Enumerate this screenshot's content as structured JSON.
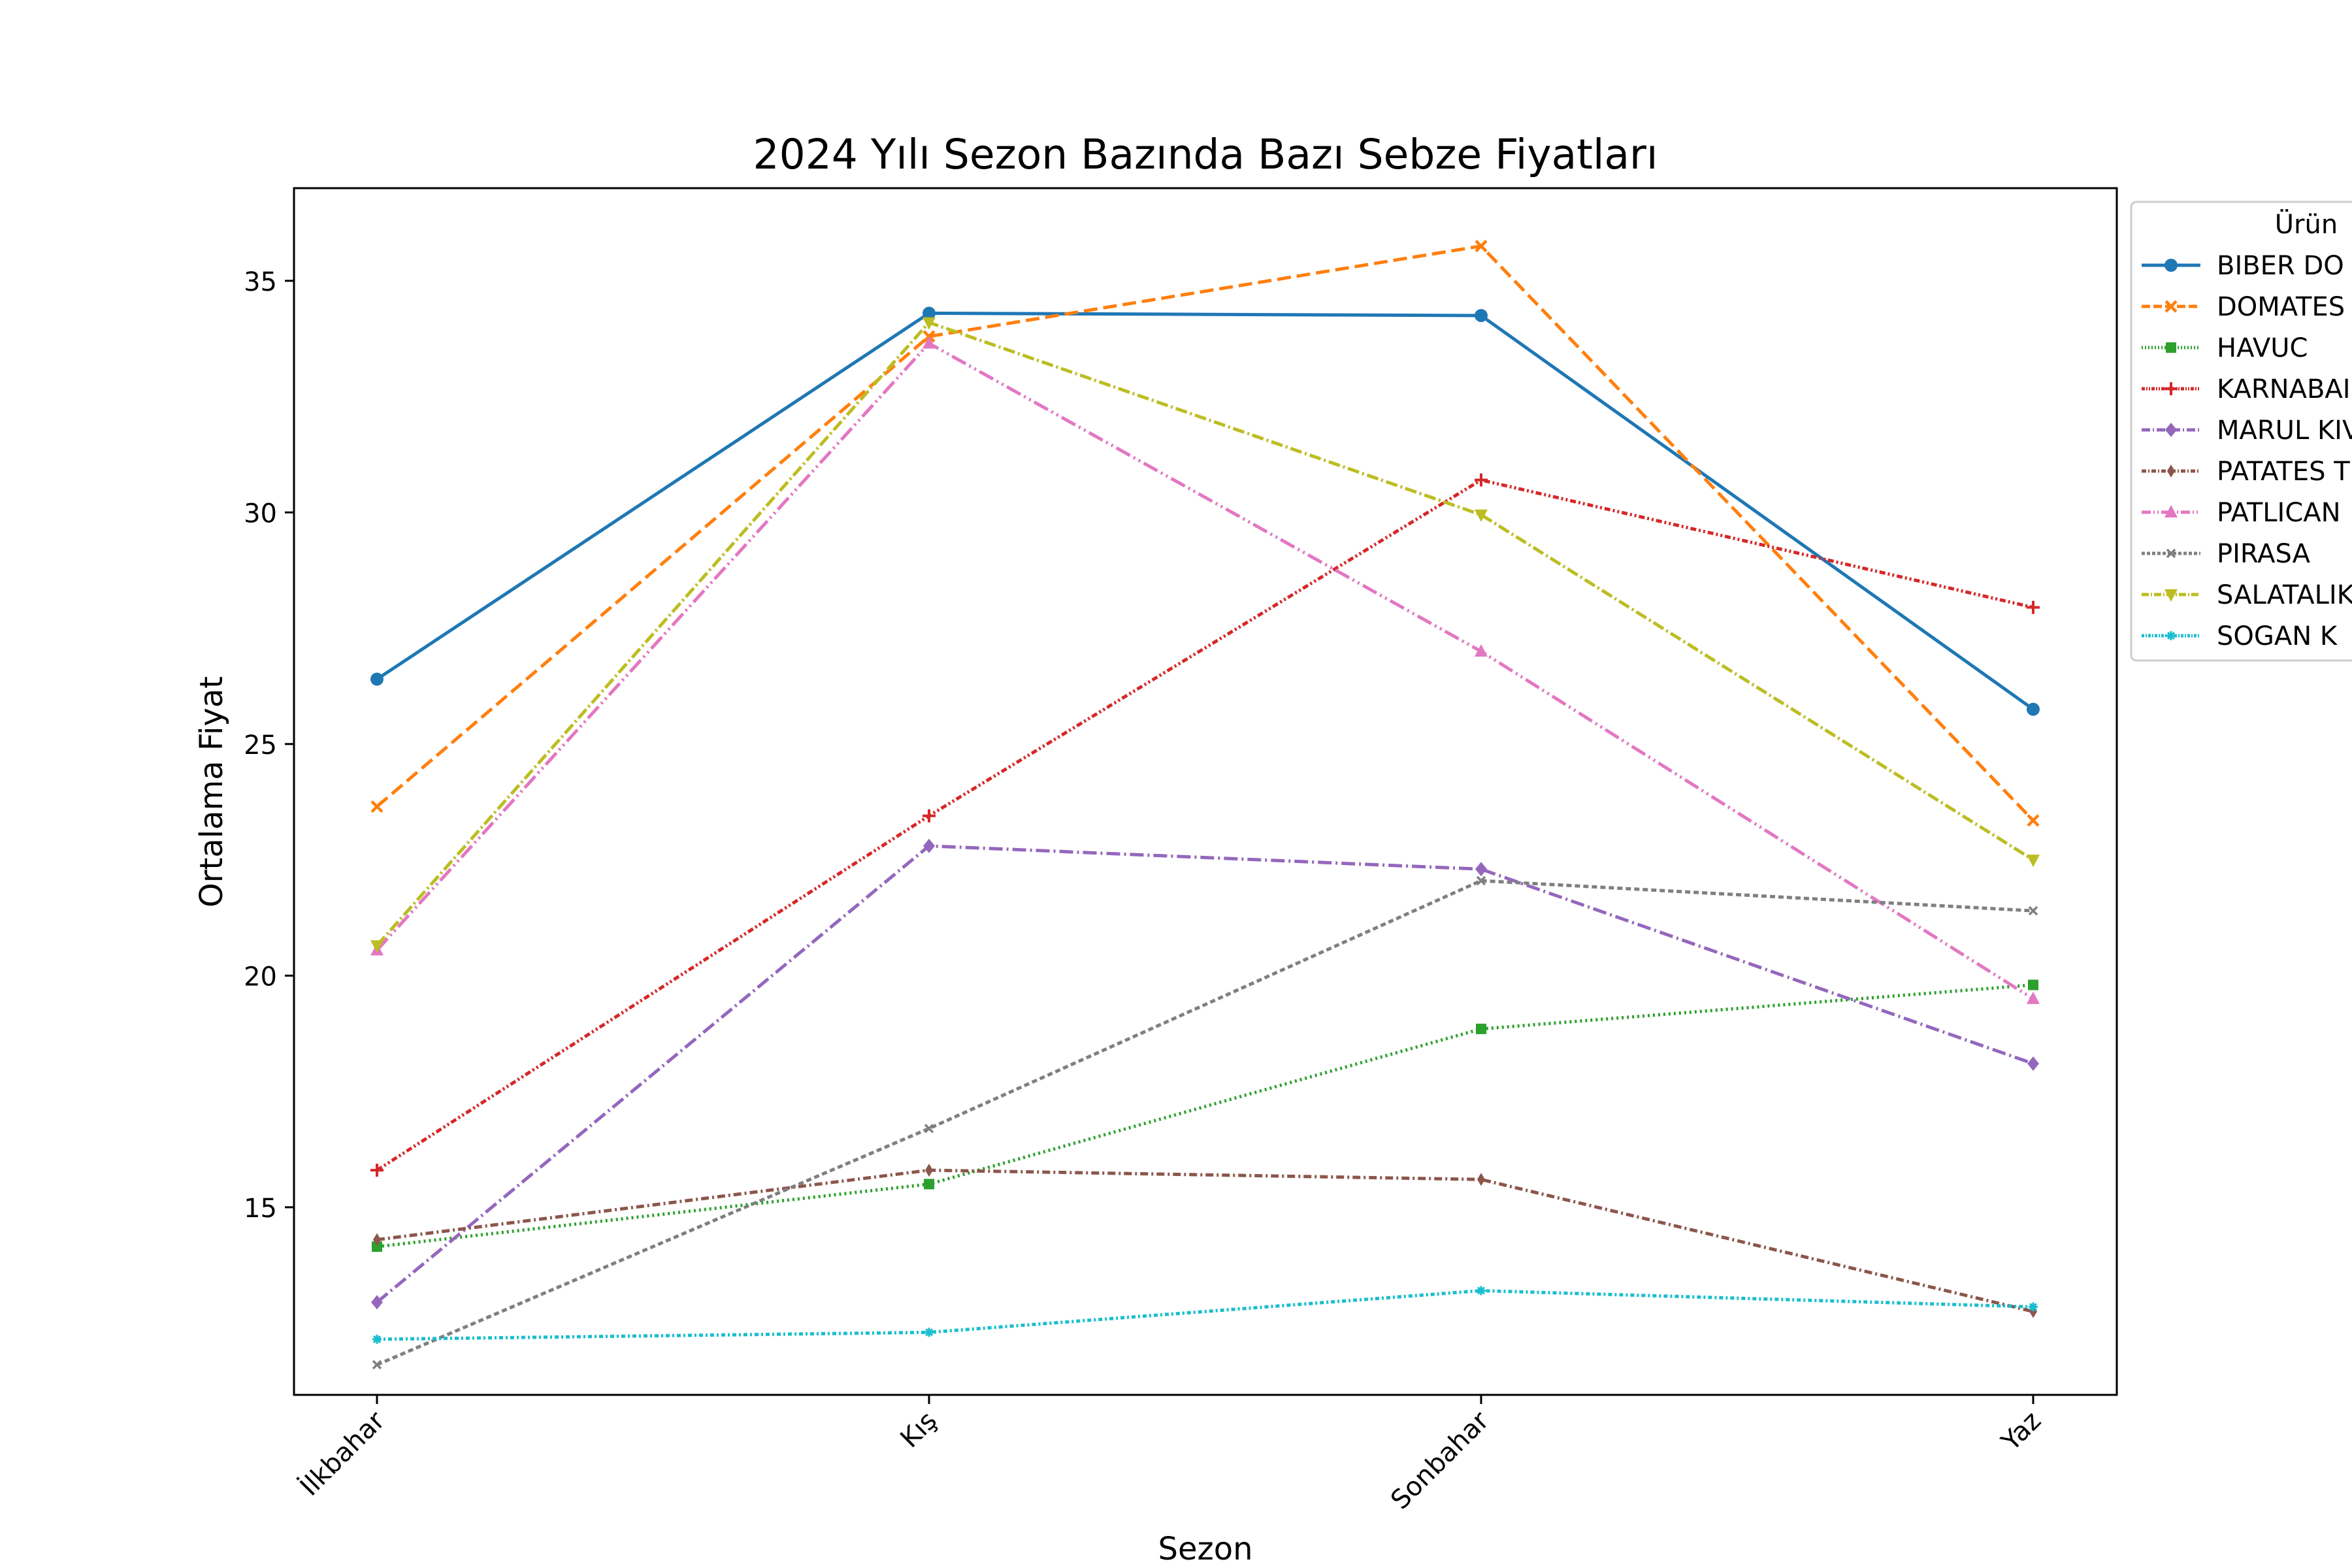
{
  "chart_data": {
    "type": "line",
    "title": "2024 Yılı Sezon Bazında Bazı Sebze Fiyatları",
    "xlabel": "Sezon",
    "ylabel": "Ortalama Fiyat",
    "categories": [
      "İlkbahar",
      "Kış",
      "Sonbahar",
      "Yaz"
    ],
    "ylim": [
      10.95,
      37.0
    ],
    "yticks": [
      15,
      20,
      25,
      30,
      35
    ],
    "grid": false,
    "legend_title": "Ürün",
    "legend_position": "outside-right (clipped)",
    "series": [
      {
        "name": "BIBER  DO",
        "color": "#1f77b4",
        "marker": "circle",
        "dash": "",
        "values": [
          26.4,
          34.3,
          34.25,
          25.75
        ]
      },
      {
        "name": "DOMATES",
        "color": "#ff7f0e",
        "marker": "x",
        "dash": "21 9",
        "values": [
          23.65,
          33.8,
          35.75,
          23.35
        ]
      },
      {
        "name": "HAVUC",
        "color": "#2ca02c",
        "marker": "square",
        "dash": "3 5",
        "values": [
          14.15,
          15.5,
          18.85,
          19.8
        ]
      },
      {
        "name": "KARNABAI",
        "color": "#d62728",
        "marker": "plus",
        "dash": "9 4 3 4 3 4",
        "values": [
          15.8,
          23.45,
          30.7,
          27.95
        ]
      },
      {
        "name": "MARUL KIV",
        "color": "#9467bd",
        "marker": "diamond",
        "dash": "21 6 3 6",
        "values": [
          12.95,
          22.8,
          22.3,
          18.1
        ]
      },
      {
        "name": "PATATES T",
        "color": "#8c564b",
        "marker": "thin-diamond",
        "dash": "12 5 3 5",
        "values": [
          14.3,
          15.8,
          15.6,
          12.75
        ]
      },
      {
        "name": "PATLICAN",
        "color": "#e377c2",
        "marker": "triangle-up",
        "dash": "24 6 3 6 3 6",
        "values": [
          20.55,
          33.65,
          27.0,
          19.5
        ]
      },
      {
        "name": "PIRASA",
        "color": "#7f7f7f",
        "marker": "x-small",
        "dash": "8 5",
        "values": [
          11.6,
          16.7,
          22.05,
          21.4
        ]
      },
      {
        "name": "SALATALIK",
        "color": "#bcbd22",
        "marker": "triangle-down",
        "dash": "18 5 3 5",
        "values": [
          20.65,
          34.1,
          29.95,
          22.5
        ]
      },
      {
        "name": "SOGAN   K",
        "color": "#17becf",
        "marker": "star",
        "dash": "6 4 3 4",
        "values": [
          12.15,
          12.3,
          13.2,
          12.85
        ]
      }
    ]
  }
}
